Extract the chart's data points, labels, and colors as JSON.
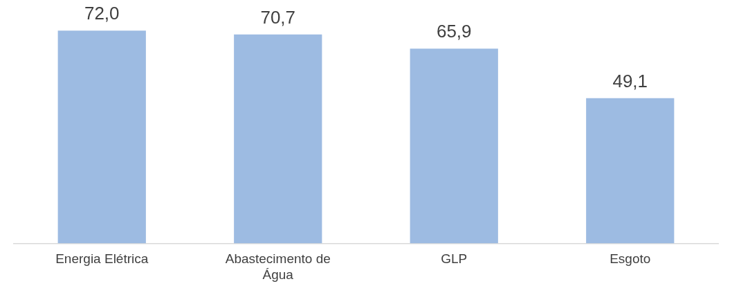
{
  "chart_data": {
    "type": "bar",
    "categories": [
      "Energia Elétrica",
      "Abastecimento de Água",
      "GLP",
      "Esgoto"
    ],
    "values": [
      72.0,
      70.7,
      65.9,
      49.1
    ],
    "color": "#9dbbe2",
    "value_labels": [
      "72,0",
      "70,7",
      "65,9",
      "49,1"
    ],
    "grid": false,
    "legend": false
  }
}
